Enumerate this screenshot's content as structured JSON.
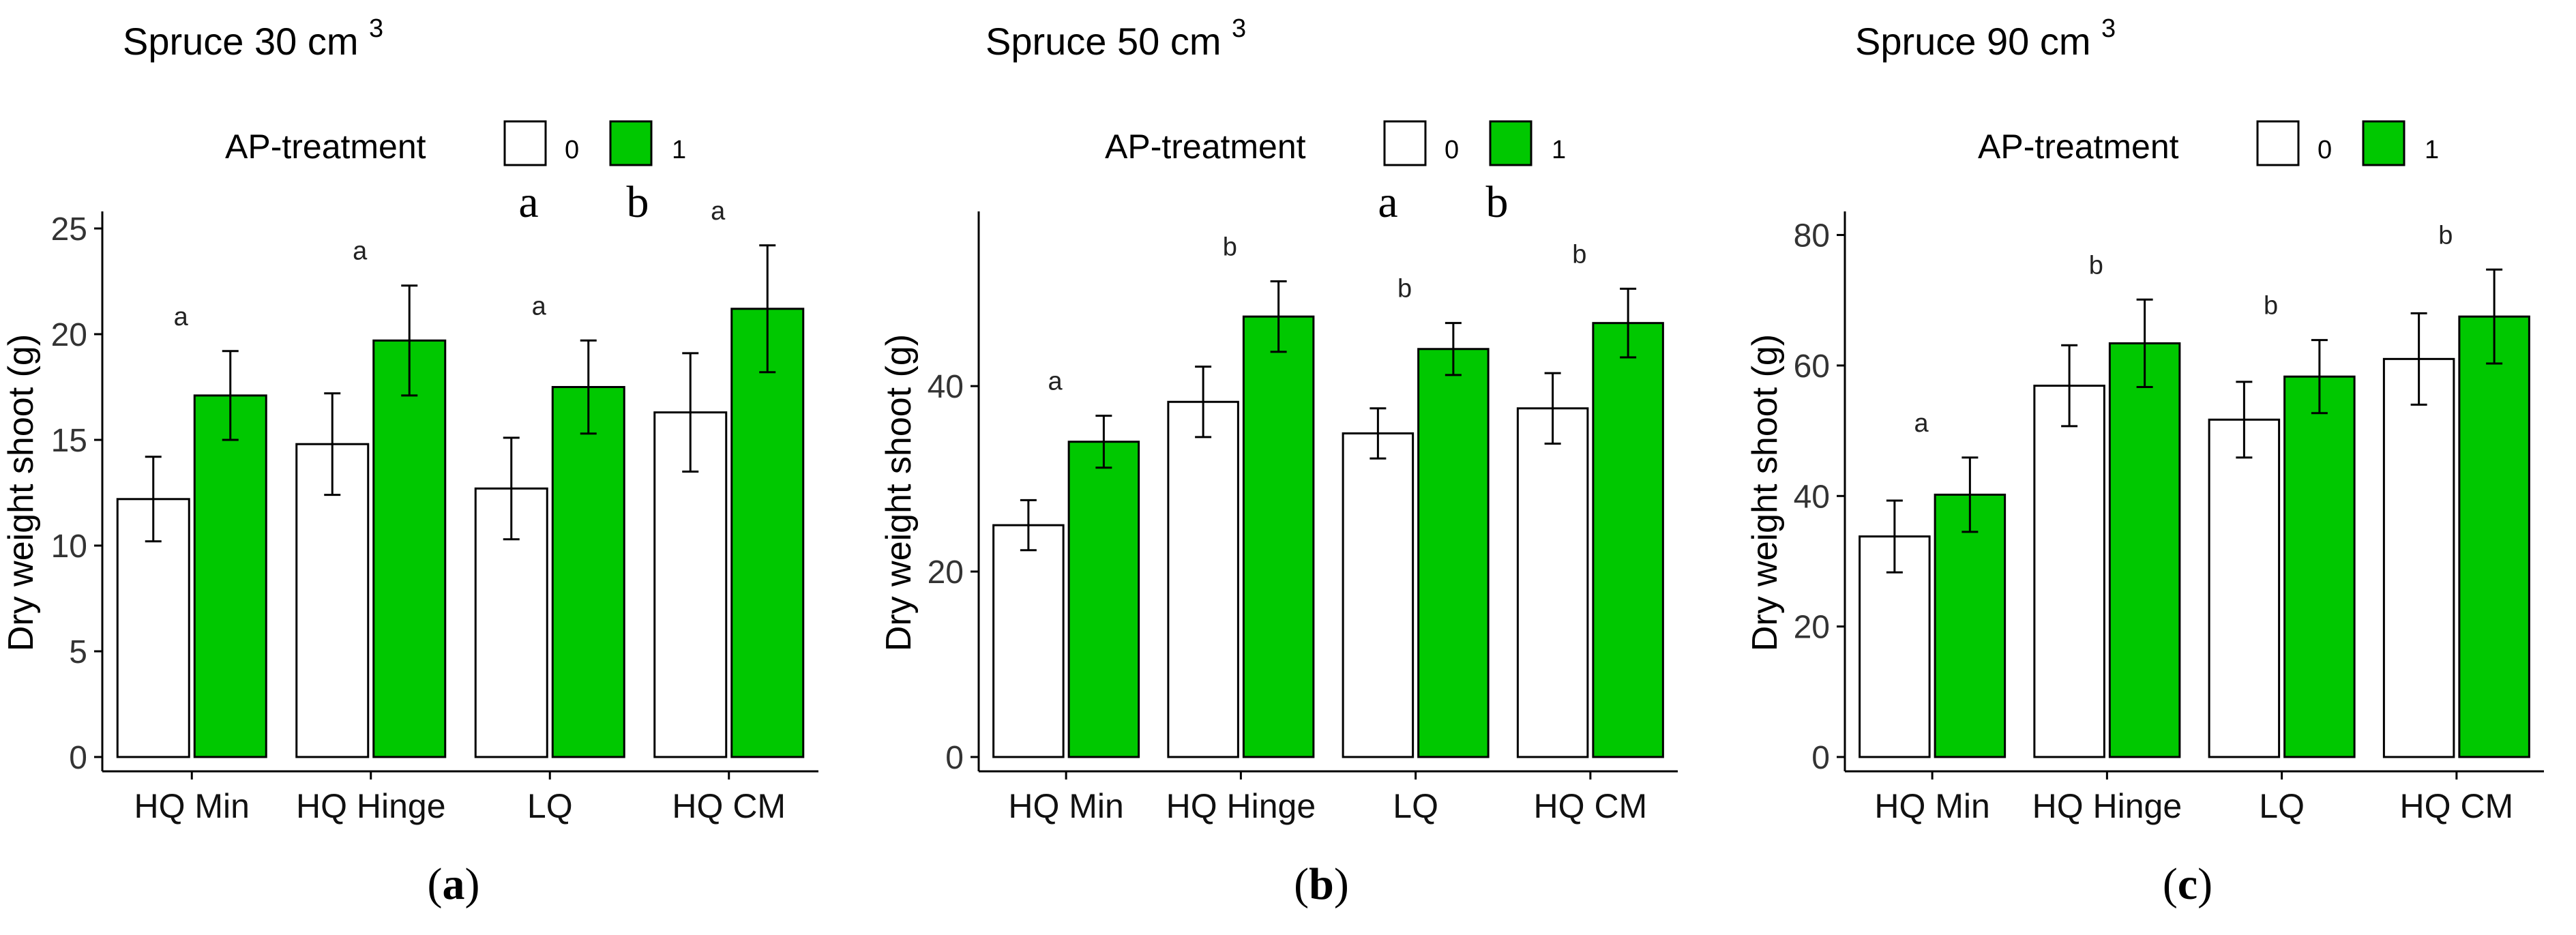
{
  "legend": {
    "title": "AP-treatment",
    "labels": [
      "0",
      "1"
    ]
  },
  "colors": {
    "treat0": "#ffffff",
    "treat1": "#00c800",
    "stroke": "#000000"
  },
  "chart_data": [
    {
      "type": "bar",
      "panel_label": "(a)",
      "title": "Spruce 30 cm",
      "title_sup": "3",
      "ylabel": "Dry weight shoot (g)",
      "xlabel": "",
      "ylim": [
        0,
        25
      ],
      "yticks": [
        0,
        5,
        10,
        15,
        20,
        25
      ],
      "categories": [
        "HQ Min",
        "HQ Hinge",
        "LQ",
        "HQ CM"
      ],
      "series": [
        {
          "name": "0",
          "values": [
            12.2,
            14.8,
            12.7,
            16.3
          ],
          "err": [
            2.0,
            2.4,
            2.4,
            2.8
          ]
        },
        {
          "name": "1",
          "values": [
            17.1,
            19.7,
            17.5,
            21.2
          ],
          "err": [
            2.1,
            2.6,
            2.2,
            3.0
          ]
        }
      ],
      "sig_letters": [
        "a",
        "a",
        "a",
        "a"
      ],
      "legend_letters": [
        "a",
        "b"
      ]
    },
    {
      "type": "bar",
      "panel_label": "(b)",
      "title": "Spruce 50 cm",
      "title_sup": "3",
      "ylabel": "Dry weight shoot (g)",
      "xlabel": "",
      "ylim": [
        0,
        57
      ],
      "yticks": [
        0,
        20,
        40
      ],
      "categories": [
        "HQ Min",
        "HQ Hinge",
        "LQ",
        "HQ CM"
      ],
      "series": [
        {
          "name": "0",
          "values": [
            25.0,
            38.3,
            34.9,
            37.6
          ],
          "err": [
            2.7,
            3.8,
            2.7,
            3.8
          ]
        },
        {
          "name": "1",
          "values": [
            34.0,
            47.5,
            44.0,
            46.8
          ],
          "err": [
            2.8,
            3.8,
            2.8,
            3.7
          ]
        }
      ],
      "sig_letters": [
        "a",
        "b",
        "b",
        "b"
      ],
      "legend_letters": [
        "a",
        "b"
      ]
    },
    {
      "type": "bar",
      "panel_label": "(c)",
      "title": "Spruce 90 cm",
      "title_sup": "3",
      "ylabel": "Dry weight shoot (g)",
      "xlabel": "",
      "ylim": [
        0,
        81
      ],
      "yticks": [
        0,
        20,
        40,
        60,
        80
      ],
      "categories": [
        "HQ Min",
        "HQ Hinge",
        "LQ",
        "HQ CM"
      ],
      "series": [
        {
          "name": "0",
          "values": [
            33.8,
            56.9,
            51.7,
            61.0
          ],
          "err": [
            5.5,
            6.2,
            5.8,
            7.0
          ]
        },
        {
          "name": "1",
          "values": [
            40.2,
            63.4,
            58.3,
            67.5
          ],
          "err": [
            5.7,
            6.7,
            5.6,
            7.2
          ]
        }
      ],
      "sig_letters": [
        "a",
        "b",
        "b",
        "b"
      ],
      "legend_letters": []
    }
  ]
}
